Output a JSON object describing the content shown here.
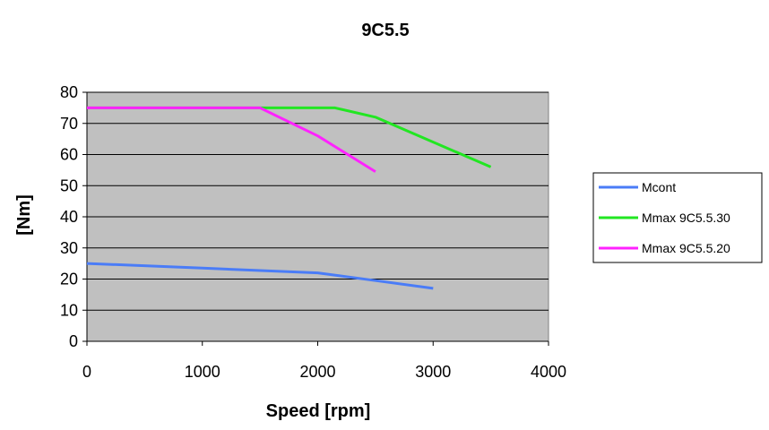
{
  "chart_data": {
    "type": "line",
    "title": "9C5.5",
    "xlabel": "Speed [rpm]",
    "ylabel": "[Nm]",
    "xlim": [
      0,
      4000
    ],
    "ylim": [
      0,
      80
    ],
    "xticks": [
      0,
      1000,
      2000,
      3000,
      4000
    ],
    "yticks": [
      0,
      10,
      20,
      30,
      40,
      50,
      60,
      70,
      80
    ],
    "grid": true,
    "plot_background": "#c0c0c0",
    "legend_position": "right",
    "series": [
      {
        "name": "Mcont",
        "color": "#4a7cf7",
        "points": [
          [
            0,
            25
          ],
          [
            1000,
            23.5
          ],
          [
            2000,
            22
          ],
          [
            2500,
            19.5
          ],
          [
            3000,
            17
          ]
        ]
      },
      {
        "name": "Mmax 9C5.5.30",
        "color": "#22e622",
        "points": [
          [
            0,
            75
          ],
          [
            2150,
            75
          ],
          [
            2500,
            72
          ],
          [
            3000,
            64
          ],
          [
            3500,
            56
          ]
        ]
      },
      {
        "name": "Mmax 9C5.5.20",
        "color": "#ff22ff",
        "points": [
          [
            0,
            75
          ],
          [
            1500,
            75
          ],
          [
            2000,
            66
          ],
          [
            2500,
            54.5
          ]
        ]
      }
    ]
  }
}
